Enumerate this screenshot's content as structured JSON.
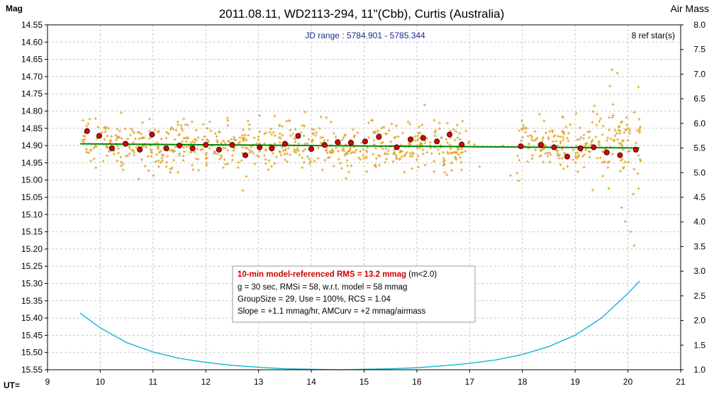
{
  "chart_data": {
    "type": "scatter",
    "title": "2011.08.11, WD2113-294, 11\"(Cbb), Curtis (Australia)",
    "ylabel_left": "Mag",
    "ylabel_right": "Air Mass",
    "xlabel": "UT=",
    "jd_range": "JD range : 5784.901 - 5785.344",
    "ref_stars": "8 ref star(s)",
    "xlim": [
      9,
      21
    ],
    "ylim": [
      15.55,
      14.55
    ],
    "y2lim": [
      1.0,
      8.0
    ],
    "x_ticks": [
      "9",
      "10",
      "11",
      "12",
      "13",
      "14",
      "15",
      "16",
      "17",
      "18",
      "19",
      "20",
      "21"
    ],
    "y_ticks": [
      "14.55",
      "14.60",
      "14.65",
      "14.70",
      "14.75",
      "14.80",
      "14.85",
      "14.90",
      "14.95",
      "15.00",
      "15.05",
      "15.10",
      "15.15",
      "15.20",
      "15.25",
      "15.30",
      "15.35",
      "15.40",
      "15.45",
      "15.50",
      "15.55"
    ],
    "y2_ticks": [
      "8.0",
      "7.5",
      "7.0",
      "6.5",
      "6.0",
      "5.5",
      "5.0",
      "4.5",
      "4.0",
      "3.5",
      "3.0",
      "2.5",
      "2.0",
      "1.5",
      "1.0"
    ],
    "grid": true,
    "stats_box": {
      "line1_bold": "10-min model-referenced RMS = 13.2 mmag",
      "line1_rest": " (m<2.0)",
      "line2": "g = 30 sec, RMSi = 58, w.r.t. model = 58 mmag",
      "line3": "GroupSize = 29, Use = 100%, RCS = 1.04",
      "line4": "Slope = +1.1 mmag/hr, AMCurv = +2 mmag/airmass"
    },
    "model_line": {
      "x": [
        9.62,
        20.22
      ],
      "y": [
        14.895,
        14.907
      ]
    },
    "binned_means": {
      "x": [
        9.75,
        9.98,
        10.22,
        10.48,
        10.75,
        10.98,
        11.25,
        11.5,
        11.75,
        12.0,
        12.25,
        12.5,
        12.75,
        13.02,
        13.25,
        13.5,
        13.75,
        14.0,
        14.25,
        14.5,
        14.75,
        15.02,
        15.28,
        15.62,
        15.88,
        16.12,
        16.38,
        16.62,
        16.85,
        17.97,
        18.35,
        18.6,
        18.85,
        19.1,
        19.35,
        19.6,
        19.85,
        20.15
      ],
      "y": [
        14.858,
        14.872,
        14.908,
        14.895,
        14.912,
        14.868,
        14.908,
        14.9,
        14.908,
        14.898,
        14.912,
        14.898,
        14.928,
        14.905,
        14.908,
        14.895,
        14.872,
        14.91,
        14.898,
        14.89,
        14.892,
        14.888,
        14.875,
        14.905,
        14.882,
        14.878,
        14.888,
        14.868,
        14.897,
        14.902,
        14.898,
        14.905,
        14.932,
        14.908,
        14.905,
        14.92,
        14.928,
        14.912
      ]
    },
    "raw_points": {
      "description": "approx. 1000 individual 30-s measurements, mag ~14.80-15.05, UT 9.65-17.0 and 17.9-20.25",
      "x_range": [
        9.65,
        20.25
      ],
      "y_center": 14.9,
      "scatter_sigma": 0.058
    },
    "air_mass": {
      "x": [
        9.62,
        10.0,
        10.5,
        11.0,
        11.5,
        12.0,
        12.5,
        13.0,
        13.5,
        14.0,
        14.5,
        15.0,
        15.5,
        16.0,
        16.5,
        17.0,
        17.5,
        18.0,
        18.5,
        19.0,
        19.5,
        20.0,
        20.22
      ],
      "y": [
        2.15,
        1.85,
        1.55,
        1.36,
        1.23,
        1.15,
        1.09,
        1.05,
        1.02,
        1.01,
        1.0,
        1.01,
        1.02,
        1.04,
        1.08,
        1.13,
        1.2,
        1.31,
        1.47,
        1.7,
        2.05,
        2.55,
        2.8
      ]
    },
    "colors": {
      "raw": "#e0a020",
      "binned": "#dd0000",
      "model": "#008800",
      "airmass": "#00b4d0",
      "grid": "#c8c8c8",
      "jd_text": "#1c2a8c",
      "stats_bold": "#cc0000"
    }
  }
}
